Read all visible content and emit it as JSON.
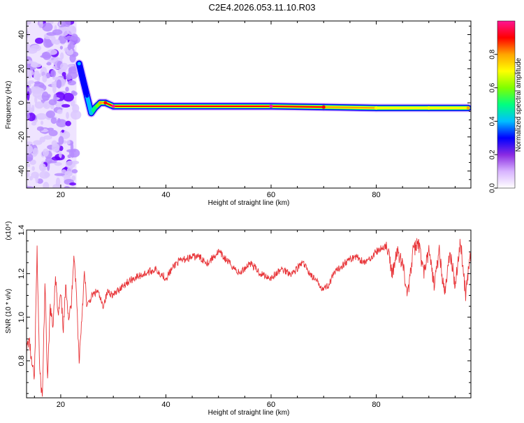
{
  "page_title": "C2E4.2026.053.11.10.R03",
  "chart_data": [
    {
      "type": "heatmap",
      "xlabel": "Height of straight line (km)",
      "ylabel": "Frequency (Hz)",
      "xlim": [
        13.5,
        98
      ],
      "ylim": [
        -50,
        48
      ],
      "xticks": [
        20,
        40,
        60,
        80
      ],
      "yticks": [
        -40,
        -20,
        0,
        20,
        40
      ],
      "colorbar": {
        "label": "Normalized spectral amplitude",
        "range": [
          0,
          1
        ],
        "ticks": [
          0.0,
          0.2,
          0.4,
          0.6,
          0.8
        ],
        "tick_labels": [
          "0.0",
          "0.2",
          "0.4",
          "0.6",
          "0.8"
        ],
        "colors": [
          "#ffffff",
          "#d8b4ff",
          "#8a2be2",
          "#0000ff",
          "#00bfff",
          "#00ff80",
          "#7fff00",
          "#ffff00",
          "#ffa500",
          "#ff0000",
          "#ff1493"
        ]
      },
      "ridge": [
        {
          "x": 23.5,
          "y": 23,
          "amp": 0.35
        },
        {
          "x": 24.2,
          "y": 14,
          "amp": 0.3
        },
        {
          "x": 25.0,
          "y": 4,
          "amp": 0.32
        },
        {
          "x": 25.8,
          "y": -6,
          "amp": 0.4
        },
        {
          "x": 26.5,
          "y": -3,
          "amp": 0.5
        },
        {
          "x": 27.5,
          "y": 0,
          "amp": 0.75
        },
        {
          "x": 28.5,
          "y": 0,
          "amp": 0.85
        },
        {
          "x": 30,
          "y": -2,
          "amp": 1.0
        },
        {
          "x": 60,
          "y": -2,
          "amp": 1.0
        },
        {
          "x": 70,
          "y": -2.5,
          "amp": 0.85
        },
        {
          "x": 80,
          "y": -3,
          "amp": 0.7
        },
        {
          "x": 90,
          "y": -3,
          "amp": 0.65
        },
        {
          "x": 97.5,
          "y": -3,
          "amp": 0.75
        }
      ]
    },
    {
      "type": "line",
      "xlabel": "Height of straight line (km)",
      "ylabel": "SNR (10 * v/v)",
      "scale_note": "(x10⁴)",
      "xlim": [
        13.5,
        98
      ],
      "ylim": [
        0.63,
        1.4
      ],
      "xticks": [
        20,
        40,
        60,
        80
      ],
      "yticks": [
        0.8,
        1.0,
        1.2,
        1.4
      ],
      "ytick_labels": [
        "0.8",
        "1.0",
        "1.2",
        "1.4"
      ],
      "series": [
        {
          "color": "#e8363a",
          "x": [
            13.5,
            14,
            14.5,
            15,
            15.5,
            16,
            16.5,
            17,
            17.5,
            18,
            18.5,
            19,
            19.5,
            20,
            20.5,
            21,
            21.5,
            22,
            22.5,
            23,
            23.5,
            24,
            24.5,
            25,
            26,
            27,
            28,
            29,
            30,
            32,
            34,
            36,
            38,
            40,
            42,
            44,
            46,
            48,
            50,
            52,
            54,
            56,
            58,
            60,
            62,
            64,
            66,
            68,
            70,
            71,
            72,
            74,
            76,
            78,
            80,
            82,
            83,
            84,
            85,
            86,
            87,
            88,
            89,
            90,
            91,
            92,
            93,
            94,
            95,
            96,
            97,
            98
          ],
          "y": [
            0.85,
            0.9,
            0.78,
            0.72,
            1.3,
            0.75,
            0.63,
            1.15,
            0.7,
            1.05,
            0.95,
            1.2,
            1.0,
            1.1,
            0.95,
            1.15,
            1.0,
            1.05,
            1.3,
            1.1,
            0.8,
            1.0,
            1.2,
            1.05,
            1.1,
            1.12,
            1.05,
            1.12,
            1.1,
            1.15,
            1.18,
            1.2,
            1.22,
            1.18,
            1.25,
            1.27,
            1.28,
            1.25,
            1.3,
            1.25,
            1.2,
            1.25,
            1.2,
            1.18,
            1.22,
            1.2,
            1.25,
            1.18,
            1.13,
            1.15,
            1.2,
            1.25,
            1.28,
            1.25,
            1.3,
            1.33,
            1.2,
            1.3,
            1.25,
            1.1,
            1.3,
            1.35,
            1.2,
            1.3,
            1.15,
            1.3,
            1.1,
            1.3,
            1.15,
            1.35,
            1.1,
            1.3
          ]
        }
      ]
    }
  ]
}
